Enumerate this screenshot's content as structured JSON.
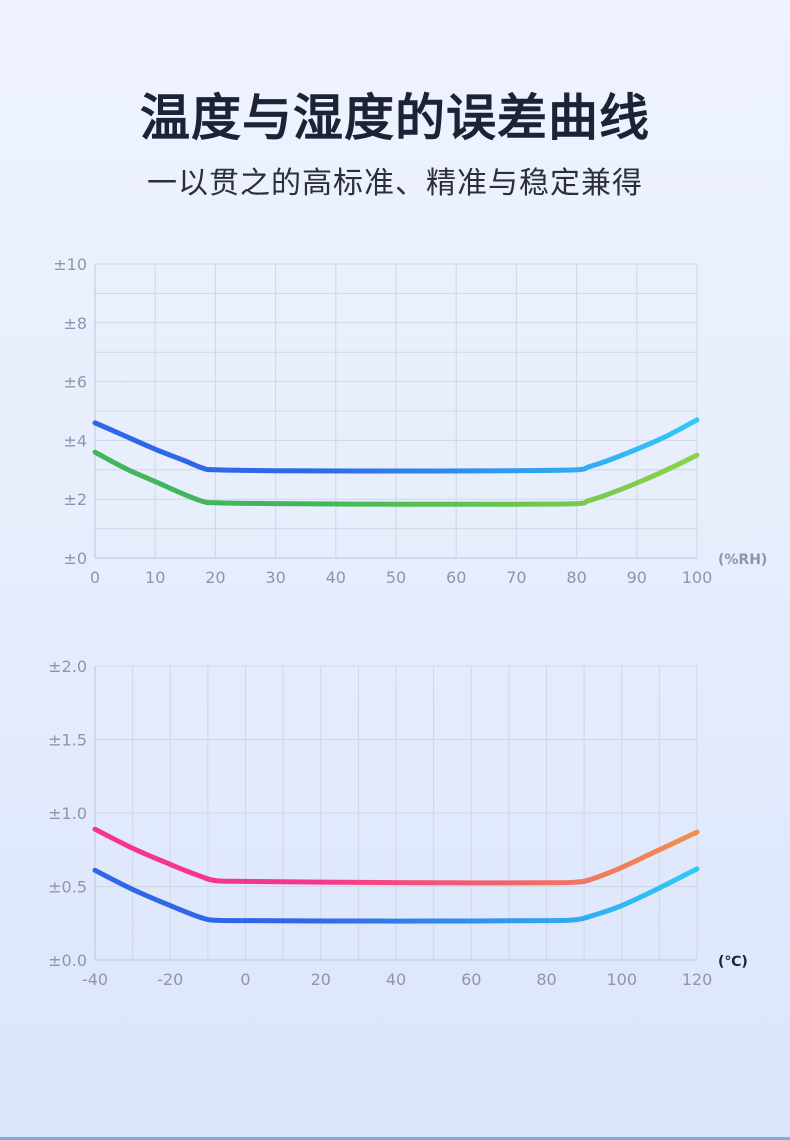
{
  "header": {
    "title": "温度与湿度的误差曲线",
    "subtitle": "一以贯之的高标准、精准与稳定兼得"
  },
  "chart_data": [
    {
      "type": "line",
      "xlim": [
        0,
        100
      ],
      "ylim": [
        0,
        10
      ],
      "x_ticks": [
        0,
        10,
        20,
        30,
        40,
        50,
        60,
        70,
        80,
        90,
        100
      ],
      "x_tick_labels": [
        "0",
        "10",
        "20",
        "30",
        "40",
        "50",
        "60",
        "70",
        "80",
        "90",
        "100"
      ],
      "y_ticks": [
        0,
        2,
        4,
        6,
        8,
        10
      ],
      "y_tick_labels": [
        "±0",
        "±2",
        "±4",
        "±6",
        "±8",
        "±10"
      ],
      "x_unit": "(%RH)",
      "unit_color": "#8f96a8",
      "grid_x_step": 10,
      "grid_y_step": 1,
      "grid": true,
      "series": [
        {
          "x": [
            0,
            5,
            10,
            15,
            18,
            20,
            30,
            50,
            70,
            80,
            82,
            85,
            90,
            95,
            100
          ],
          "y": [
            4.6,
            4.15,
            3.7,
            3.3,
            3.05,
            3.0,
            2.97,
            2.96,
            2.97,
            3.0,
            3.1,
            3.3,
            3.7,
            4.15,
            4.7
          ],
          "colors": [
            "#3066e8",
            "#33c9f5"
          ]
        },
        {
          "x": [
            0,
            5,
            10,
            15,
            18,
            20,
            30,
            50,
            70,
            80,
            82,
            85,
            90,
            95,
            100
          ],
          "y": [
            3.6,
            3.05,
            2.6,
            2.15,
            1.92,
            1.88,
            1.85,
            1.83,
            1.83,
            1.85,
            1.95,
            2.15,
            2.55,
            3.0,
            3.5
          ],
          "colors": [
            "#43b55a",
            "#8ed24a"
          ]
        }
      ]
    },
    {
      "type": "line",
      "xlim": [
        -40,
        120
      ],
      "ylim": [
        0,
        2
      ],
      "x_ticks": [
        -40,
        -20,
        0,
        20,
        40,
        60,
        80,
        100,
        120
      ],
      "x_tick_labels": [
        "-40",
        "-20",
        "0",
        "20",
        "40",
        "60",
        "80",
        "100",
        "120"
      ],
      "y_ticks": [
        0,
        0.5,
        1.0,
        1.5,
        2.0
      ],
      "y_tick_labels": [
        "±0.0",
        "±0.5",
        "±1.0",
        "±1.5",
        "±2.0"
      ],
      "x_unit": "(℃)",
      "unit_color": "#1d2236",
      "grid_x_step": 10,
      "grid_y_step": 0.5,
      "grid": true,
      "series": [
        {
          "x": [
            -40,
            -30,
            -20,
            -12,
            -8,
            0,
            20,
            50,
            80,
            88,
            92,
            100,
            110,
            120
          ],
          "y": [
            0.89,
            0.76,
            0.65,
            0.57,
            0.54,
            0.535,
            0.53,
            0.525,
            0.525,
            0.53,
            0.55,
            0.63,
            0.75,
            0.87
          ],
          "colors": [
            "#f5368e",
            "#f0904d"
          ]
        },
        {
          "x": [
            -40,
            -30,
            -20,
            -12,
            -8,
            0,
            20,
            50,
            80,
            88,
            92,
            100,
            110,
            120
          ],
          "y": [
            0.61,
            0.48,
            0.37,
            0.29,
            0.27,
            0.268,
            0.265,
            0.265,
            0.268,
            0.275,
            0.3,
            0.37,
            0.49,
            0.62
          ],
          "colors": [
            "#3066e8",
            "#33c9f5"
          ]
        }
      ]
    }
  ]
}
